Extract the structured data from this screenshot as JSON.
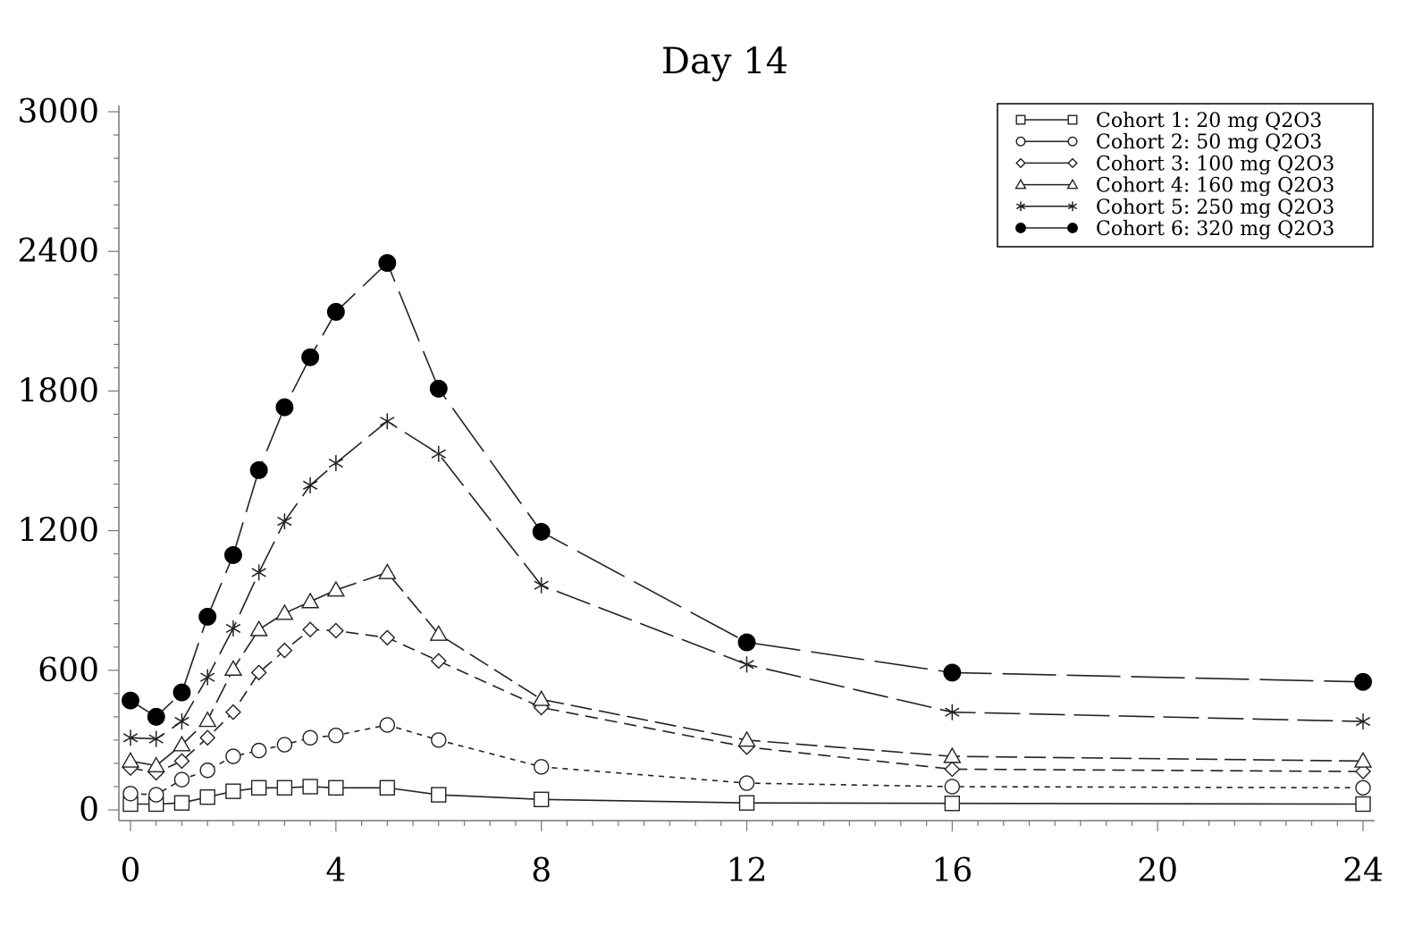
{
  "chart_data": {
    "type": "line",
    "title": "Day 14",
    "xlabel": "",
    "ylabel": "",
    "xlim": [
      0,
      24
    ],
    "ylim": [
      0,
      3000
    ],
    "xticks": [
      0,
      4,
      8,
      12,
      16,
      20,
      24
    ],
    "xtick_labels": [
      "0",
      "4",
      "8",
      "12",
      "16",
      "20",
      "24"
    ],
    "yticks": [
      0,
      600,
      1200,
      1800,
      2400,
      3000
    ],
    "ytick_labels": [
      "0",
      "600",
      "1200",
      "1800",
      "2400",
      "3000"
    ],
    "legend_position": "top-right",
    "x": [
      0,
      0.5,
      1,
      1.5,
      2,
      2.5,
      3,
      3.5,
      4,
      5,
      6,
      8,
      12,
      16,
      24
    ],
    "series": [
      {
        "name": "Cohort 1: 20 mg Q2O3",
        "marker": "square",
        "values": [
          25,
          25,
          30,
          55,
          80,
          95,
          95,
          100,
          95,
          95,
          65,
          45,
          30,
          28,
          25
        ]
      },
      {
        "name": "Cohort 2: 50 mg Q2O3",
        "marker": "circle",
        "values": [
          70,
          65,
          130,
          170,
          230,
          255,
          280,
          310,
          320,
          365,
          300,
          185,
          115,
          100,
          95
        ]
      },
      {
        "name": "Cohort 3: 100 mg Q2O3",
        "marker": "diamond",
        "values": [
          180,
          160,
          210,
          310,
          420,
          590,
          685,
          775,
          770,
          740,
          640,
          440,
          270,
          175,
          165
        ]
      },
      {
        "name": "Cohort 4: 160 mg Q2O3",
        "marker": "triangle",
        "values": [
          210,
          190,
          280,
          385,
          605,
          775,
          845,
          895,
          945,
          1020,
          755,
          475,
          300,
          230,
          210
        ]
      },
      {
        "name": "Cohort 5: 250 mg Q2O3",
        "marker": "asterisk",
        "values": [
          310,
          305,
          380,
          570,
          780,
          1020,
          1240,
          1395,
          1490,
          1670,
          1530,
          965,
          625,
          420,
          380
        ]
      },
      {
        "name": "Cohort 6: 320 mg Q2O3",
        "marker": "filled-circle",
        "values": [
          470,
          400,
          505,
          830,
          1095,
          1460,
          1730,
          1945,
          2140,
          2350,
          1810,
          1195,
          720,
          590,
          550
        ]
      }
    ]
  }
}
